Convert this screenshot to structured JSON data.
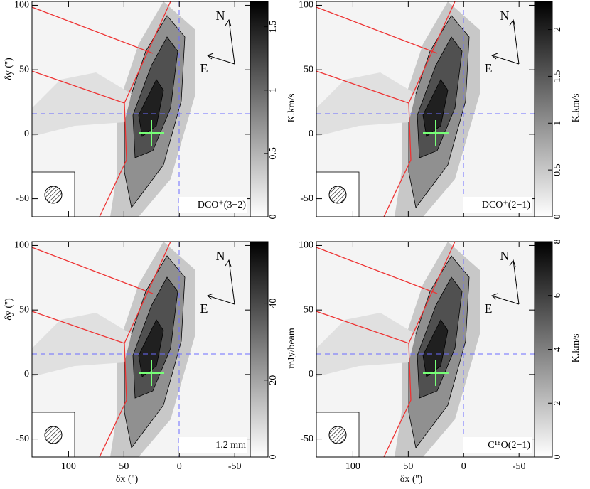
{
  "chart_data": [
    {
      "type": "image",
      "label": "DCO⁺(3−2)",
      "ylabel": "δy ('')",
      "xlim": [
        133,
        -64
      ],
      "xticks": [
        100,
        50,
        0,
        -50
      ],
      "ylim": [
        -64,
        103
      ],
      "yticks": [
        -50,
        0,
        50,
        100
      ],
      "compass_north": "N",
      "compass_east": "E",
      "colorbar": {
        "label": "K.km/s",
        "lim": [
          0,
          1.7
        ],
        "ticks": [
          0,
          0.5,
          1,
          1.5
        ]
      }
    },
    {
      "type": "image",
      "label": "DCO⁺(2−1)",
      "xlim": [
        133,
        -64
      ],
      "xticks": [
        100,
        50,
        0,
        -50
      ],
      "ylim": [
        -64,
        103
      ],
      "yticks": [
        -50,
        0,
        50,
        100
      ],
      "compass_north": "N",
      "compass_east": "E",
      "colorbar": {
        "label": "K.km/s",
        "lim": [
          0,
          2.3
        ],
        "ticks": [
          0,
          0.5,
          1,
          1.5,
          2
        ]
      }
    },
    {
      "type": "image",
      "label": "1.2 mm",
      "ylabel": "δy ('')",
      "xlabel": "δx ('')",
      "xlim": [
        133,
        -64
      ],
      "xticks": [
        100,
        50,
        0,
        -50
      ],
      "ylim": [
        -64,
        103
      ],
      "yticks": [
        -50,
        0,
        50,
        100
      ],
      "compass_north": "N",
      "compass_east": "E",
      "colorbar": {
        "label": "mJy/beam",
        "lim": [
          0,
          56
        ],
        "ticks": [
          0,
          20,
          40
        ]
      }
    },
    {
      "type": "image",
      "label": "C¹⁸O(2−1)",
      "xlabel": "δx ('')",
      "xlim": [
        133,
        -64
      ],
      "xticks": [
        100,
        50,
        0,
        -50
      ],
      "ylim": [
        -64,
        103
      ],
      "yticks": [
        -50,
        0,
        50,
        100
      ],
      "compass_north": "N",
      "compass_east": "E",
      "colorbar": {
        "label": "K.km/s",
        "lim": [
          0,
          8
        ],
        "ticks": [
          0,
          2,
          4,
          6,
          8
        ]
      }
    }
  ]
}
